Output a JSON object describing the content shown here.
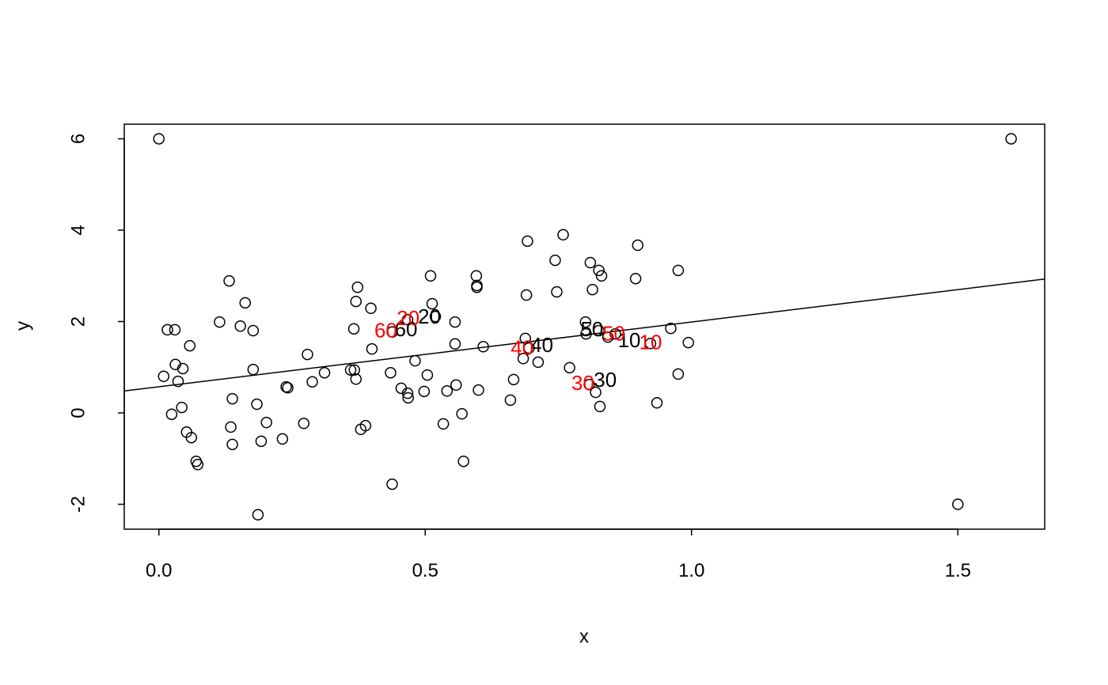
{
  "chart_data": {
    "type": "scatter",
    "x_label": "x",
    "y_label": "y",
    "xlim": [
      -0.065,
      1.663
    ],
    "ylim": [
      -2.545,
      6.32
    ],
    "xticks": [
      {
        "value": 0,
        "label": "0.0"
      },
      0.5,
      {
        "value": 1,
        "label": "1.0"
      },
      1.5
    ],
    "yticks": [
      -2,
      0,
      2,
      4,
      6
    ],
    "color": "#000000",
    "x": [
      0,
      1.6,
      1.5,
      0.009,
      0.016,
      0.03,
      0.024,
      0.031,
      0.036,
      0.045,
      0.043,
      0.052,
      0.058,
      0.061,
      0.07,
      0.073,
      0.114,
      0.132,
      0.135,
      0.138,
      0.138,
      0.153,
      0.162,
      0.177,
      0.177,
      0.184,
      0.186,
      0.192,
      0.202,
      0.232,
      0.239,
      0.242,
      0.272,
      0.279,
      0.288,
      0.311,
      0.36,
      0.367,
      0.366,
      0.37,
      0.37,
      0.373,
      0.379,
      0.388,
      0.398,
      0.4,
      0.435,
      0.438,
      0.455,
      0.467,
      0.468,
      0.467,
      0.438,
      0.481,
      0.498,
      0.504,
      0.51,
      0.513,
      0.519,
      0.534,
      0.541,
      0.556,
      0.556,
      0.558,
      0.569,
      0.572,
      0.596,
      0.597,
      0.597,
      0.6,
      0.609,
      0.66,
      0.666,
      0.684,
      0.688,
      0.69,
      0.692,
      0.695,
      0.712,
      0.744,
      0.747,
      0.759,
      0.771,
      0.801,
      0.802,
      0.808,
      0.81,
      0.814,
      0.82,
      0.826,
      0.831,
      0.828,
      0.826,
      0.843,
      0.857,
      0.895,
      0.899,
      0.923,
      0.935,
      0.961,
      0.975,
      0.975,
      0.994
    ],
    "y": [
      6,
      6,
      -2,
      0.8,
      1.82,
      1.82,
      -0.03,
      1.06,
      0.69,
      0.97,
      0.12,
      -0.42,
      1.47,
      -0.54,
      -1.06,
      -1.13,
      1.99,
      2.89,
      -0.31,
      -0.69,
      0.31,
      1.9,
      2.41,
      1.8,
      0.95,
      0.19,
      -2.23,
      -0.62,
      -0.21,
      -0.57,
      0.57,
      0.55,
      -0.23,
      1.28,
      0.68,
      0.88,
      0.94,
      0.94,
      1.84,
      0.74,
      2.44,
      2.75,
      -0.36,
      -0.28,
      2.29,
      1.4,
      0.88,
      -1.56,
      0.54,
      0.43,
      0.33,
      2.04,
      1.77,
      1.14,
      0.47,
      0.83,
      3.0,
      2.39,
      2.11,
      -0.24,
      0.48,
      1.99,
      1.51,
      0.61,
      -0.02,
      -1.06,
      3.0,
      2.79,
      2.75,
      0.5,
      1.45,
      0.28,
      0.73,
      1.19,
      1.63,
      2.58,
      3.76,
      1.42,
      1.11,
      3.34,
      2.65,
      3.9,
      0.99,
      1.99,
      1.73,
      0.62,
      3.29,
      2.7,
      0.45,
      3.12,
      3.0,
      0.14,
      1.8,
      1.66,
      1.73,
      2.94,
      3.67,
      1.52,
      0.22,
      1.85,
      3.12,
      0.85,
      1.54
    ],
    "fit_line": {
      "x": [
        -0.065,
        1.663
      ],
      "y": [
        0.48,
        2.93
      ],
      "color": "#000000"
    },
    "annotations": [
      {
        "text": "10",
        "x": 0.883,
        "y": 1.56,
        "color": "#000000"
      },
      {
        "text": "20",
        "x": 0.508,
        "y": 2.08,
        "color": "#000000"
      },
      {
        "text": "30",
        "x": 0.838,
        "y": 0.69,
        "color": "#000000"
      },
      {
        "text": "40",
        "x": 0.719,
        "y": 1.45,
        "color": "#000000"
      },
      {
        "text": "50",
        "x": 0.813,
        "y": 1.8,
        "color": "#000000"
      },
      {
        "text": "60",
        "x": 0.464,
        "y": 1.8,
        "color": "#000000"
      },
      {
        "text": "10",
        "x": 0.923,
        "y": 1.51,
        "color": "#ff0000"
      },
      {
        "text": "20",
        "x": 0.468,
        "y": 2.04,
        "color": "#ff0000"
      },
      {
        "text": "30",
        "x": 0.796,
        "y": 0.62,
        "color": "#ff0000"
      },
      {
        "text": "40",
        "x": 0.682,
        "y": 1.39,
        "color": "#ff0000"
      },
      {
        "text": "50",
        "x": 0.854,
        "y": 1.7,
        "color": "#ff0000"
      },
      {
        "text": "60",
        "x": 0.426,
        "y": 1.77,
        "color": "#ff0000"
      }
    ]
  }
}
